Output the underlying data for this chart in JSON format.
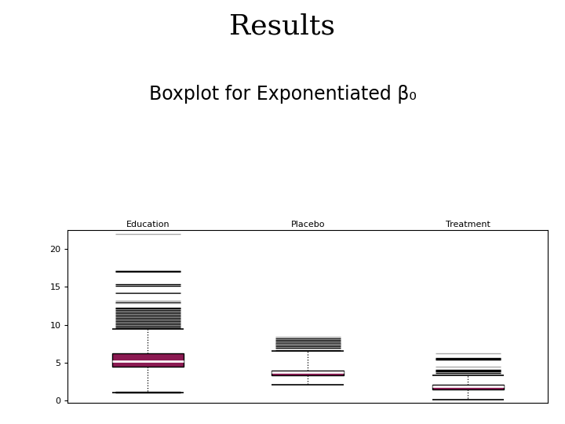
{
  "title1": "Results",
  "title2": "Boxplot for Exponentiated β₀",
  "groups": [
    "Education",
    "Placebo",
    "Treatment"
  ],
  "box_color": "#8B1A52",
  "median_color": "#FFFFFF",
  "whisker_color": "#000000",
  "cap_color": "#000000",
  "flier_color_black": "#000000",
  "flier_color_gray": "#AAAAAA",
  "ylim": [
    -0.3,
    22.5
  ],
  "yticks": [
    0,
    5,
    10,
    15,
    20
  ],
  "background_color": "#FFFFFF",
  "education": {
    "q1": 4.5,
    "median": 5.2,
    "q3": 6.2,
    "whisker_low": 1.0,
    "whisker_high": 9.5,
    "outliers_black": [
      9.7,
      9.9,
      10.1,
      10.3,
      10.5,
      10.7,
      10.9,
      11.1,
      11.3,
      11.5,
      11.7,
      11.9,
      12.1,
      12.3,
      13.0,
      14.2,
      15.2,
      15.4,
      17.0,
      17.1
    ],
    "outliers_gray": [
      12.9,
      13.2
    ],
    "low_outliers_black": [
      1.1,
      1.2
    ],
    "far_outliers_gray": [
      22.0
    ]
  },
  "placebo": {
    "q1": 3.3,
    "median": 3.7,
    "q3": 4.0,
    "whisker_low": 2.1,
    "whisker_high": 6.5,
    "outliers_black": [
      6.7,
      7.0,
      7.2,
      7.4,
      7.6,
      7.8,
      8.0,
      8.2
    ],
    "outliers_gray": [
      7.5,
      8.4
    ],
    "low_outliers_black": [],
    "far_outliers_gray": []
  },
  "treatment": {
    "q1": 1.5,
    "median": 1.9,
    "q3": 2.1,
    "whisker_low": 0.1,
    "whisker_high": 3.3,
    "outliers_black": [
      3.6,
      3.8,
      4.0,
      4.1,
      5.4,
      5.5,
      5.6
    ],
    "outliers_gray": [
      4.5,
      6.2
    ],
    "low_outliers_black": [],
    "far_outliers_gray": []
  },
  "box_width": 0.45,
  "positions": [
    1,
    2,
    3
  ],
  "label_fontsize": 8,
  "ytick_fontsize": 8
}
